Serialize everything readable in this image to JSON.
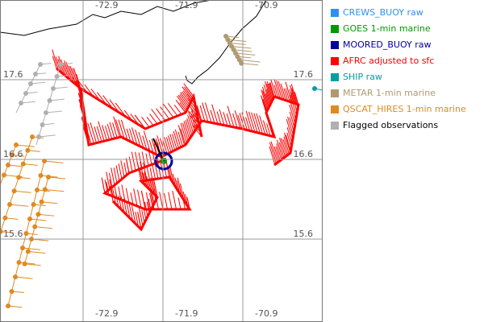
{
  "map": {
    "lon_labels": [
      -72.9,
      -71.9,
      -70.9
    ],
    "lat_labels": [
      17.6,
      16.6,
      15.6
    ],
    "legend": [
      {
        "label": "CREWS_BUOY raw",
        "color": "#2f8fef"
      },
      {
        "label": "GOES 1-min marine",
        "color": "#009900"
      },
      {
        "label": "MOORED_BUOY raw",
        "color": "#00009c"
      },
      {
        "label": "AFRC adjusted to sfc",
        "color": "#ff0000"
      },
      {
        "label": "SHIP raw",
        "color": "#00a0a0"
      },
      {
        "label": "METAR 1-min marine",
        "color": "#b09a70"
      },
      {
        "label": "QSCAT_HIRES 1-min marine",
        "color": "#e08a20"
      },
      {
        "label": "Flagged observations",
        "color": "#b0b0b0"
      }
    ]
  }
}
